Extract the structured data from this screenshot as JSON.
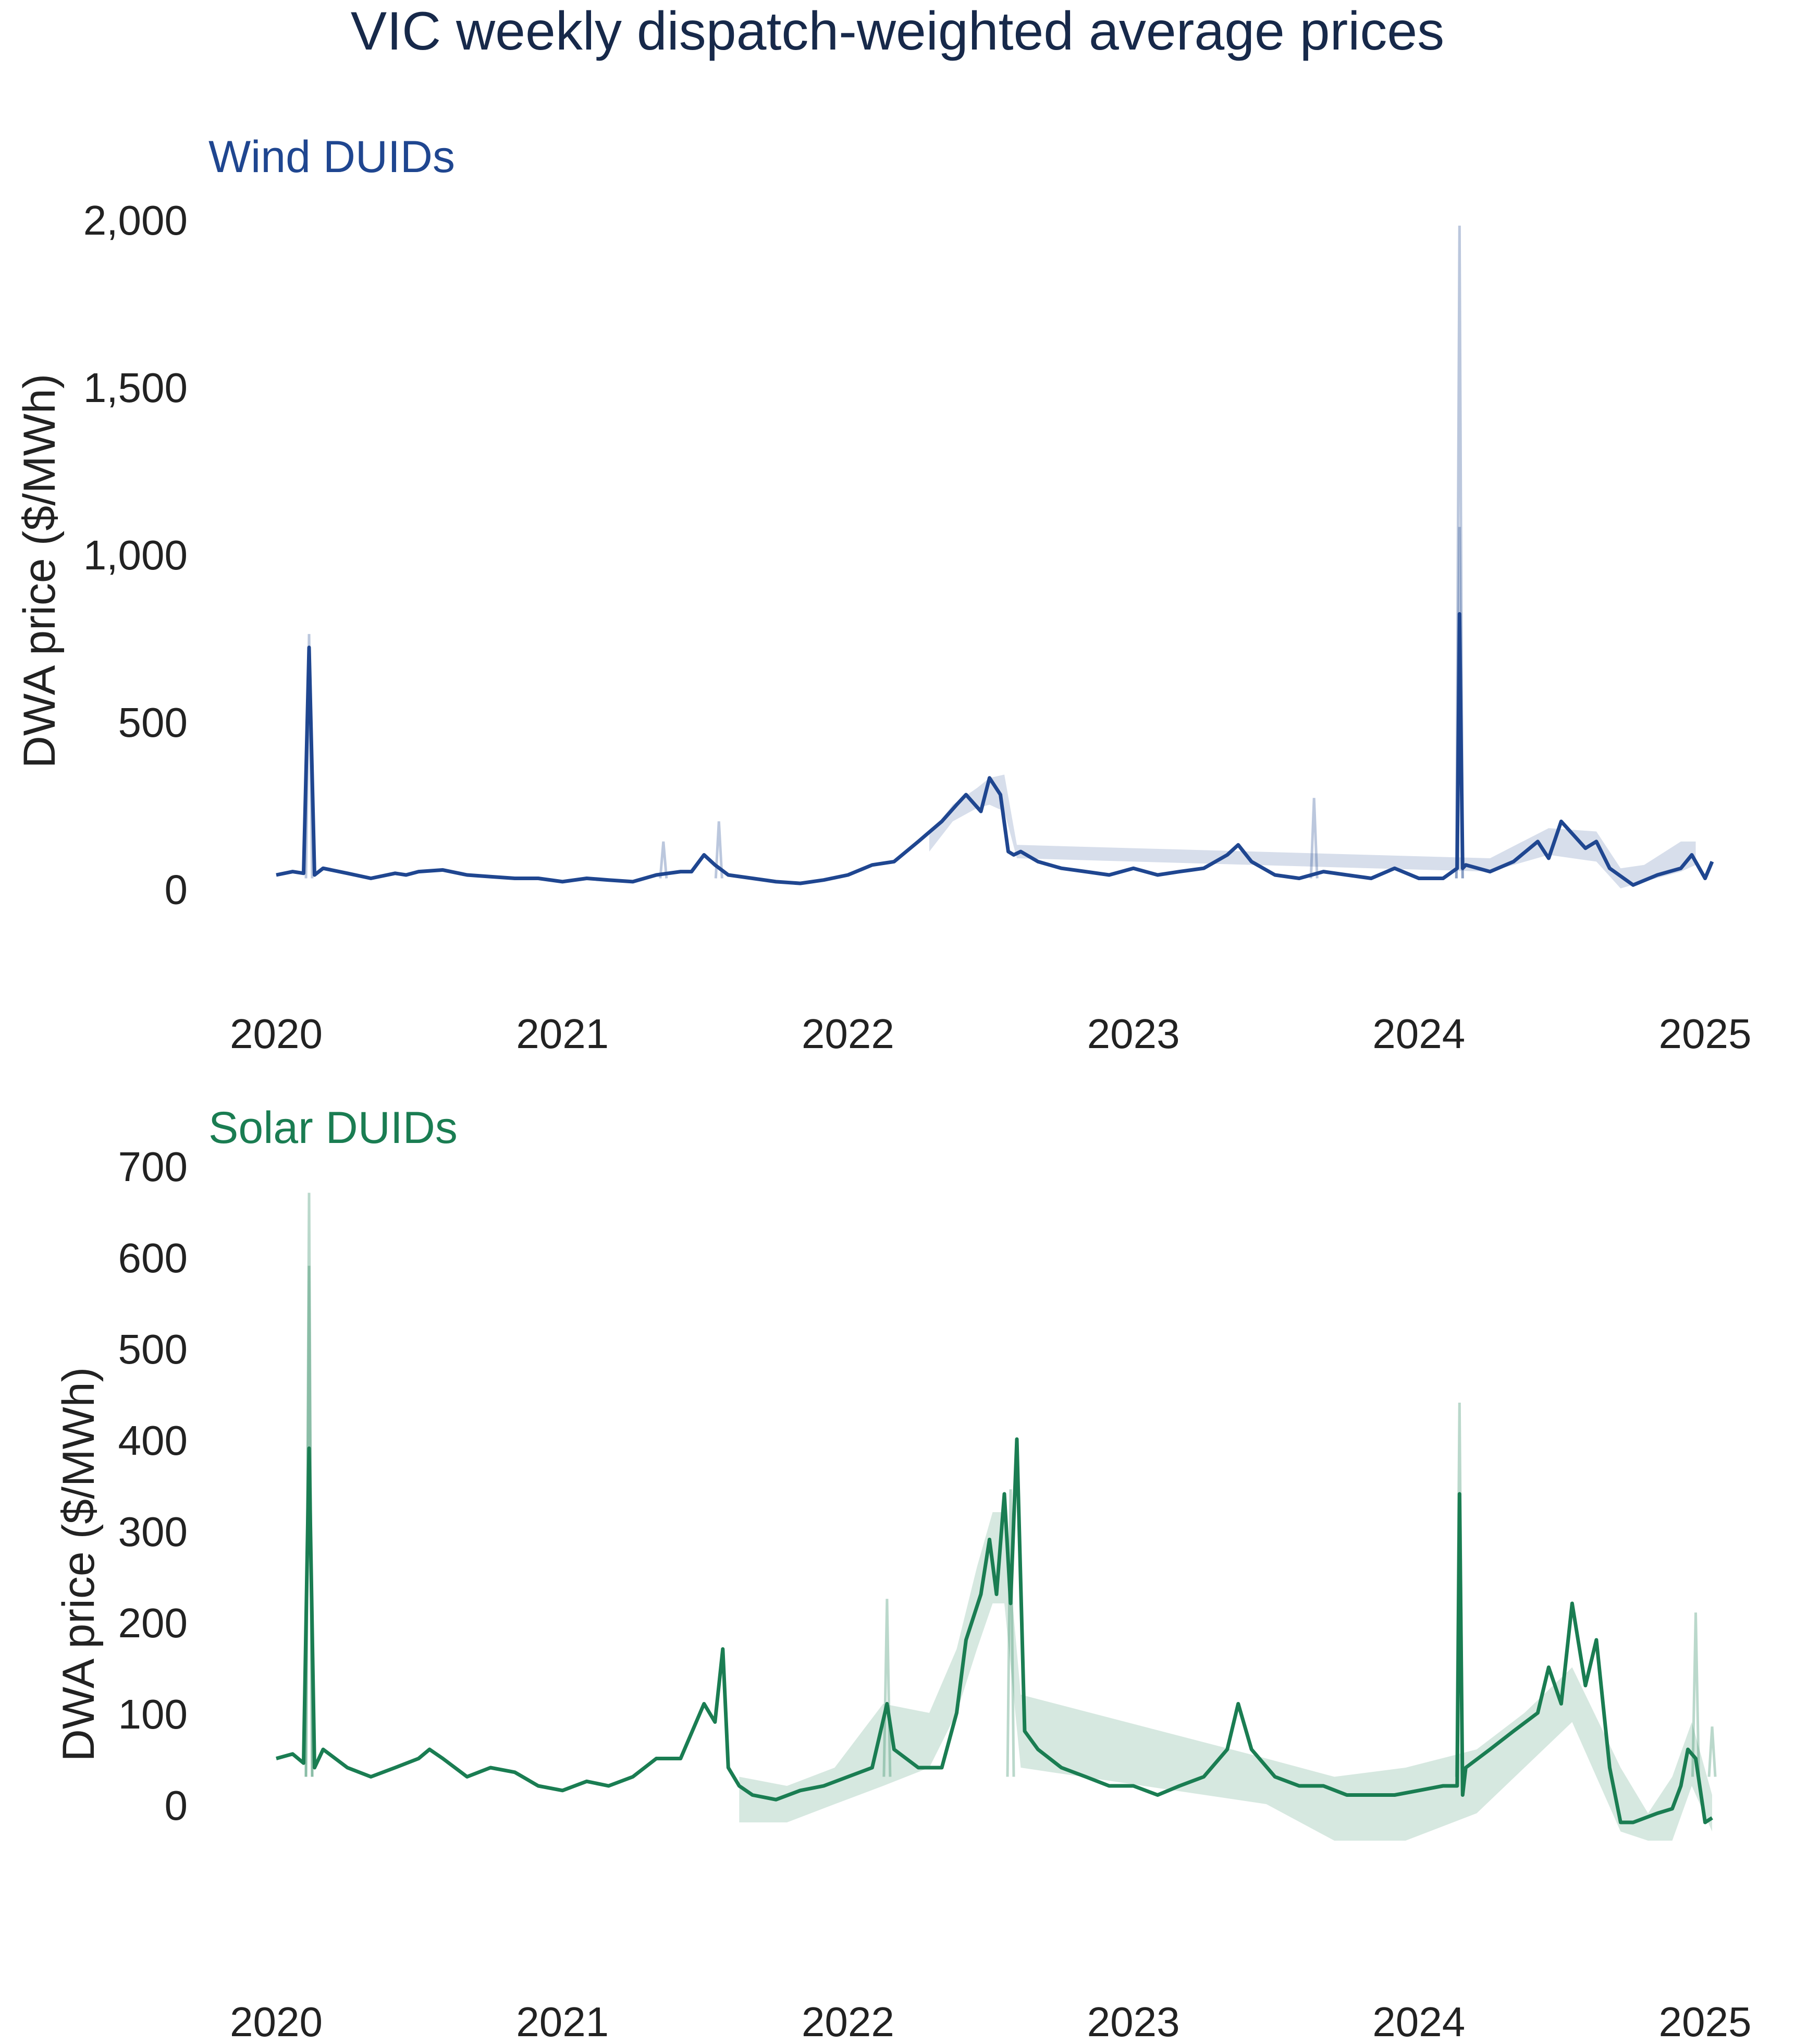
{
  "figure": {
    "title": "VIC weekly dispatch-weighted average prices"
  },
  "chart_data": [
    {
      "type": "line",
      "subtitle": "Wind DUIDs",
      "ylabel": "DWA price ($/MWh)",
      "xlabel": "",
      "color": "#1f4690",
      "x_range": [
        "2020-01-01",
        "2025-01-10"
      ],
      "ylim": [
        -150,
        2000
      ],
      "x_ticks": [
        "2020",
        "2021",
        "2022",
        "2023",
        "2024",
        "2025"
      ],
      "y_ticks": [
        "0",
        "500",
        "1,000",
        "1,500",
        "2,000"
      ],
      "y_tick_values": [
        0,
        500,
        1000,
        1500,
        2000
      ],
      "grid": false,
      "legend": "none",
      "highlight_series": {
        "x": [
          "2020-01-01",
          "2020-01-22",
          "2020-02-05",
          "2020-02-12",
          "2020-02-19",
          "2020-03-01",
          "2020-04-01",
          "2020-05-01",
          "2020-06-01",
          "2020-06-15",
          "2020-07-01",
          "2020-08-01",
          "2020-09-01",
          "2020-10-01",
          "2020-11-01",
          "2020-12-01",
          "2021-01-01",
          "2021-02-01",
          "2021-03-01",
          "2021-04-01",
          "2021-05-01",
          "2021-06-01",
          "2021-06-15",
          "2021-07-01",
          "2021-07-15",
          "2021-08-01",
          "2021-09-01",
          "2021-10-01",
          "2021-11-01",
          "2021-12-01",
          "2022-01-01",
          "2022-02-01",
          "2022-03-01",
          "2022-04-01",
          "2022-05-01",
          "2022-05-20",
          "2022-06-01",
          "2022-06-20",
          "2022-07-01",
          "2022-07-15",
          "2022-07-25",
          "2022-08-01",
          "2022-08-10",
          "2022-09-01",
          "2022-10-01",
          "2022-11-01",
          "2022-12-01",
          "2023-01-01",
          "2023-02-01",
          "2023-03-01",
          "2023-04-01",
          "2023-05-01",
          "2023-05-15",
          "2023-06-01",
          "2023-07-01",
          "2023-08-01",
          "2023-09-01",
          "2023-10-01",
          "2023-11-01",
          "2023-12-01",
          "2024-01-01",
          "2024-02-01",
          "2024-02-19",
          "2024-02-22",
          "2024-02-26",
          "2024-03-01",
          "2024-04-01",
          "2024-05-01",
          "2024-06-01",
          "2024-06-15",
          "2024-07-01",
          "2024-08-01",
          "2024-08-15",
          "2024-09-01",
          "2024-10-01",
          "2024-11-01",
          "2024-12-01",
          "2024-12-15",
          "2025-01-01",
          "2025-01-10"
        ],
        "y": [
          40,
          50,
          45,
          720,
          40,
          60,
          45,
          30,
          45,
          40,
          50,
          55,
          40,
          35,
          30,
          30,
          20,
          30,
          25,
          20,
          40,
          50,
          50,
          100,
          70,
          40,
          30,
          20,
          15,
          25,
          40,
          70,
          80,
          140,
          200,
          250,
          280,
          230,
          330,
          280,
          110,
          100,
          110,
          80,
          60,
          50,
          40,
          60,
          40,
          50,
          60,
          100,
          130,
          80,
          40,
          30,
          50,
          40,
          30,
          60,
          30,
          30,
          60,
          820,
          60,
          70,
          50,
          80,
          140,
          90,
          200,
          120,
          140,
          60,
          10,
          40,
          60,
          100,
          30,
          80
        ]
      },
      "band": {
        "x": [
          "2022-04-15",
          "2022-05-15",
          "2022-06-15",
          "2022-07-01",
          "2022-07-20",
          "2022-08-05",
          "2024-04-01",
          "2024-06-15",
          "2024-08-15",
          "2024-09-15",
          "2024-10-15",
          "2024-12-01",
          "2024-12-20"
        ],
        "low": [
          110,
          200,
          240,
          250,
          230,
          90,
          50,
          100,
          80,
          0,
          20,
          50,
          70
        ],
        "high": [
          160,
          250,
          300,
          330,
          340,
          130,
          90,
          180,
          170,
          60,
          70,
          140,
          140
        ]
      },
      "faint_spikes": [
        {
          "x": "2020-02-12",
          "y": 760
        },
        {
          "x": "2021-05-10",
          "y": 140
        },
        {
          "x": "2021-07-20",
          "y": 200
        },
        {
          "x": "2023-08-20",
          "y": 270
        },
        {
          "x": "2024-02-22",
          "y": 1980
        },
        {
          "x": "2024-02-22",
          "y": 1080
        }
      ]
    },
    {
      "type": "line",
      "subtitle": "Solar DUIDs",
      "ylabel": "DWA price ($/MWh)",
      "xlabel": "",
      "color": "#1a7d52",
      "x_range": [
        "2020-01-01",
        "2025-01-10"
      ],
      "ylim": [
        -80,
        700
      ],
      "x_ticks": [
        "2020",
        "2021",
        "2022",
        "2023",
        "2024",
        "2025"
      ],
      "y_ticks": [
        "0",
        "100",
        "200",
        "300",
        "400",
        "500",
        "600",
        "700"
      ],
      "y_tick_values": [
        0,
        100,
        200,
        300,
        400,
        500,
        600,
        700
      ],
      "grid": false,
      "legend": "none",
      "highlight_series": {
        "x": [
          "2020-01-01",
          "2020-01-22",
          "2020-02-05",
          "2020-02-12",
          "2020-02-19",
          "2020-03-01",
          "2020-04-01",
          "2020-05-01",
          "2020-06-01",
          "2020-07-01",
          "2020-07-15",
          "2020-08-01",
          "2020-09-01",
          "2020-10-01",
          "2020-11-01",
          "2020-12-01",
          "2021-01-01",
          "2021-02-01",
          "2021-03-01",
          "2021-04-01",
          "2021-05-01",
          "2021-06-01",
          "2021-07-01",
          "2021-07-15",
          "2021-07-25",
          "2021-08-01",
          "2021-08-15",
          "2021-09-01",
          "2021-10-01",
          "2021-11-01",
          "2021-12-01",
          "2022-01-01",
          "2022-02-01",
          "2022-02-20",
          "2022-03-01",
          "2022-04-01",
          "2022-05-01",
          "2022-05-20",
          "2022-06-01",
          "2022-06-20",
          "2022-07-01",
          "2022-07-10",
          "2022-07-20",
          "2022-07-28",
          "2022-08-05",
          "2022-08-15",
          "2022-09-01",
          "2022-10-01",
          "2022-11-01",
          "2022-12-01",
          "2023-01-01",
          "2023-02-01",
          "2023-03-01",
          "2023-04-01",
          "2023-05-01",
          "2023-05-15",
          "2023-06-01",
          "2023-07-01",
          "2023-08-01",
          "2023-09-01",
          "2023-10-01",
          "2023-11-01",
          "2023-12-01",
          "2024-01-01",
          "2024-02-01",
          "2024-02-19",
          "2024-02-22",
          "2024-02-26",
          "2024-03-01",
          "2024-04-01",
          "2024-05-01",
          "2024-06-01",
          "2024-06-15",
          "2024-07-01",
          "2024-07-15",
          "2024-08-01",
          "2024-08-15",
          "2024-09-01",
          "2024-09-15",
          "2024-10-01",
          "2024-11-01",
          "2024-11-20",
          "2024-12-01",
          "2024-12-10",
          "2024-12-20",
          "2025-01-01",
          "2025-01-10"
        ],
        "y": [
          50,
          55,
          45,
          390,
          40,
          60,
          40,
          30,
          40,
          50,
          60,
          50,
          30,
          40,
          35,
          20,
          15,
          25,
          20,
          30,
          50,
          50,
          110,
          90,
          170,
          40,
          20,
          10,
          5,
          15,
          20,
          30,
          40,
          110,
          60,
          40,
          40,
          100,
          180,
          230,
          290,
          230,
          340,
          220,
          400,
          80,
          60,
          40,
          30,
          20,
          20,
          10,
          20,
          30,
          60,
          110,
          60,
          30,
          20,
          20,
          10,
          10,
          10,
          15,
          20,
          20,
          340,
          10,
          40,
          60,
          80,
          100,
          150,
          110,
          220,
          130,
          180,
          40,
          -20,
          -20,
          -10,
          -5,
          20,
          60,
          50,
          -20,
          -15
        ]
      },
      "band": {
        "x": [
          "2021-08-15",
          "2021-10-15",
          "2021-12-15",
          "2022-02-15",
          "2022-04-15",
          "2022-05-20",
          "2022-06-15",
          "2022-07-05",
          "2022-07-20",
          "2022-08-10",
          "2023-06-20",
          "2023-09-15",
          "2023-12-15",
          "2024-03-15",
          "2024-05-15",
          "2024-07-15",
          "2024-09-15",
          "2024-10-20",
          "2024-11-20",
          "2024-12-15",
          "2025-01-10"
        ],
        "low": [
          -20,
          -20,
          0,
          20,
          40,
          100,
          170,
          220,
          220,
          40,
          0,
          -40,
          -40,
          -10,
          40,
          90,
          -30,
          -40,
          -40,
          20,
          -30
        ],
        "high": [
          30,
          20,
          40,
          110,
          100,
          170,
          260,
          320,
          320,
          120,
          50,
          30,
          40,
          60,
          100,
          150,
          40,
          -10,
          30,
          90,
          10
        ]
      },
      "faint_spikes": [
        {
          "x": "2020-02-12",
          "y": 670
        },
        {
          "x": "2020-02-12",
          "y": 590
        },
        {
          "x": "2022-02-20",
          "y": 225
        },
        {
          "x": "2022-07-28",
          "y": 345
        },
        {
          "x": "2024-02-22",
          "y": 440
        },
        {
          "x": "2024-12-20",
          "y": 210
        },
        {
          "x": "2025-01-10",
          "y": 85
        }
      ]
    }
  ]
}
